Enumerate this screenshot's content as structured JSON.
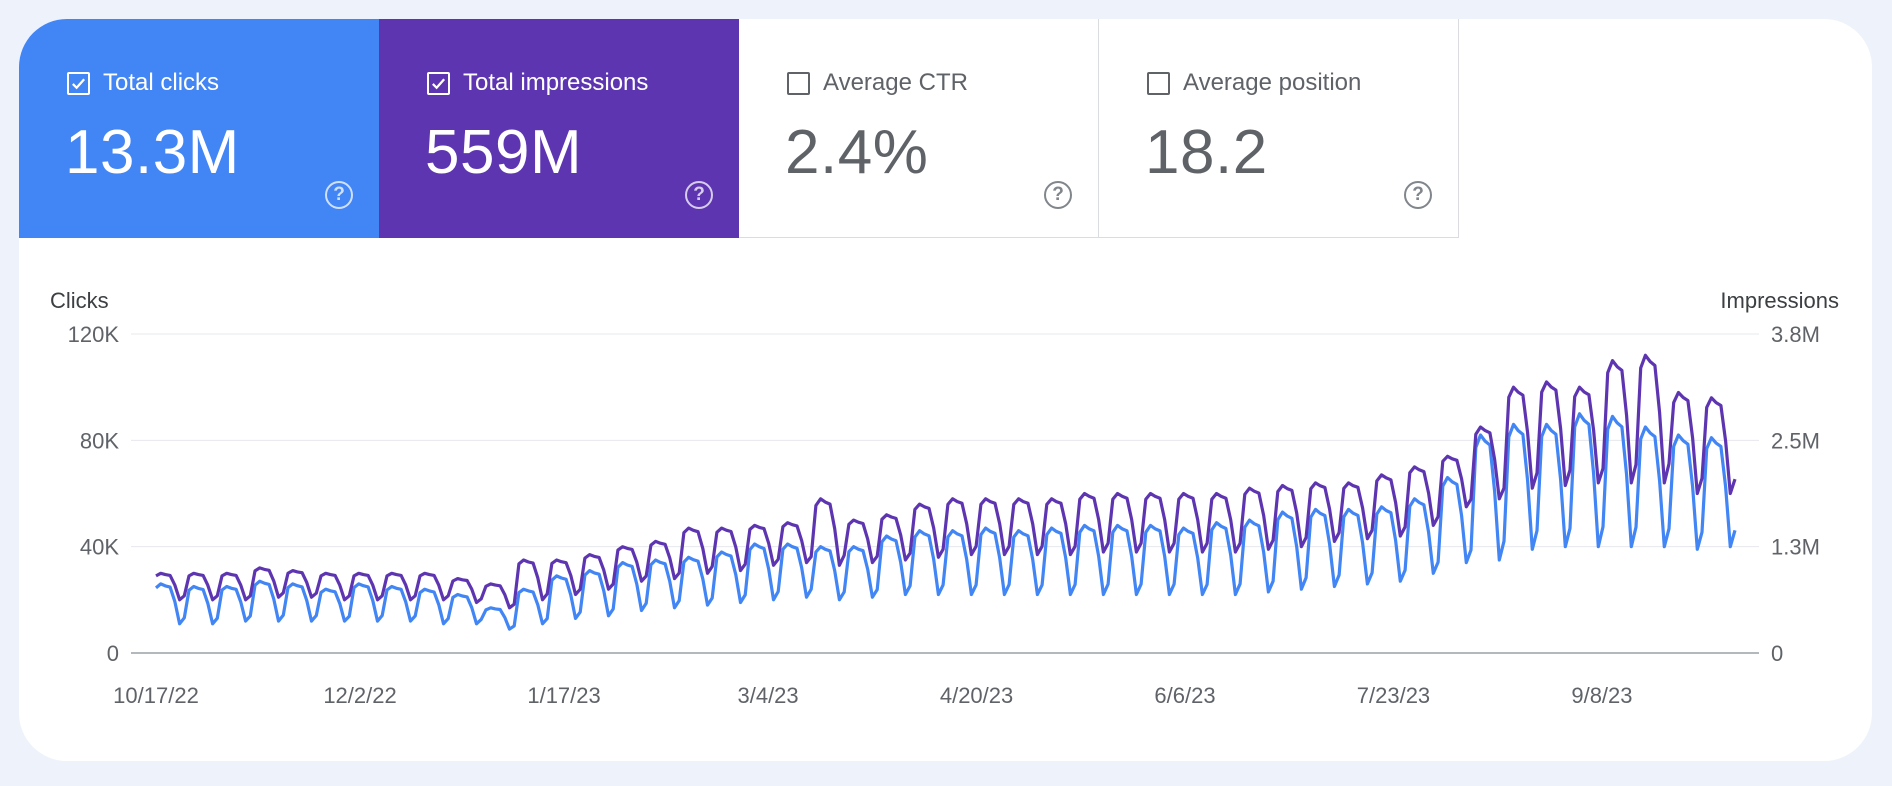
{
  "metrics": [
    {
      "label": "Total clicks",
      "value": "13.3M",
      "checked": true,
      "color": "#4285f4"
    },
    {
      "label": "Total impressions",
      "value": "559M",
      "checked": true,
      "color": "#5e35b1"
    },
    {
      "label": "Average CTR",
      "value": "2.4%",
      "checked": false,
      "color": "#ffffff"
    },
    {
      "label": "Average position",
      "value": "18.2",
      "checked": false,
      "color": "#ffffff"
    }
  ],
  "help_glyph": "?",
  "icons": {
    "checkbox": "checkbox-icon",
    "help": "help-circle-icon"
  },
  "chart_data": {
    "type": "line",
    "left_axis": {
      "title": "Clicks",
      "ticks": [
        "0",
        "40K",
        "80K",
        "120K"
      ],
      "values": [
        0,
        40000,
        80000,
        120000
      ],
      "range": [
        0,
        120000
      ]
    },
    "right_axis": {
      "title": "Impressions",
      "ticks": [
        "0",
        "1.3M",
        "2.5M",
        "3.8M"
      ],
      "values": [
        0,
        1250000,
        2500000,
        3750000
      ],
      "range": [
        0,
        3750000
      ]
    },
    "x_ticks": [
      "10/17/22",
      "12/2/22",
      "1/17/23",
      "3/4/23",
      "4/20/23",
      "6/6/23",
      "7/23/23",
      "9/8/23"
    ],
    "x_range": [
      "2022-10-17",
      "2023-10-08"
    ],
    "grid": true,
    "series": [
      {
        "name": "Total clicks",
        "axis": "left",
        "color": "#4285f4",
        "weekly_high": [
          26000,
          25000,
          25000,
          27000,
          26000,
          24000,
          26000,
          25000,
          24000,
          22000,
          17000,
          24000,
          29000,
          31000,
          34000,
          35000,
          36000,
          38000,
          41000,
          41000,
          40000,
          40000,
          44000,
          46000,
          46000,
          47000,
          46000,
          47000,
          48000,
          48000,
          48000,
          47000,
          49000,
          50000,
          53000,
          54000,
          54000,
          55000,
          58000,
          66000,
          82000,
          86000,
          86000,
          90000,
          89000,
          85000,
          82000,
          81000
        ],
        "weekly_low": [
          11000,
          11000,
          12000,
          12000,
          12000,
          12000,
          12000,
          12000,
          11000,
          11000,
          9000,
          11000,
          13000,
          14000,
          16000,
          17000,
          18000,
          19000,
          20000,
          21000,
          20000,
          21000,
          22000,
          22000,
          22000,
          22000,
          22000,
          22000,
          22000,
          22000,
          22000,
          22000,
          22000,
          23000,
          24000,
          25000,
          26000,
          27000,
          30000,
          34000,
          35000,
          39000,
          40000,
          40000,
          40000,
          40000,
          39000,
          40000
        ]
      },
      {
        "name": "Total impressions",
        "axis": "left",
        "color": "#5e35b1",
        "weekly_high": [
          30000,
          30000,
          30000,
          32000,
          31000,
          30000,
          30000,
          30000,
          30000,
          28000,
          26000,
          35000,
          35000,
          37000,
          40000,
          42000,
          47000,
          47000,
          48000,
          49000,
          58000,
          50000,
          52000,
          56000,
          58000,
          58000,
          58000,
          58000,
          60000,
          60000,
          60000,
          60000,
          60000,
          62000,
          63000,
          64000,
          64000,
          67000,
          70000,
          74000,
          85000,
          100000,
          102000,
          100000,
          110000,
          112000,
          98000,
          96000
        ],
        "weekly_low": [
          20000,
          20000,
          20000,
          21000,
          21000,
          20000,
          20000,
          20000,
          20000,
          19000,
          17000,
          20000,
          22000,
          24000,
          27000,
          28000,
          30000,
          31000,
          33000,
          34000,
          33000,
          34000,
          35000,
          36000,
          37000,
          37000,
          37000,
          37000,
          38000,
          38000,
          38000,
          38000,
          38000,
          39000,
          40000,
          42000,
          43000,
          44000,
          48000,
          55000,
          58000,
          62000,
          63000,
          64000,
          64000,
          64000,
          60000,
          60000
        ]
      }
    ]
  }
}
